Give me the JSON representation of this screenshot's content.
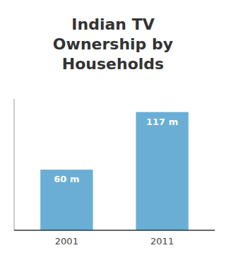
{
  "chart_data": {
    "type": "bar",
    "title": "Indian TV\nOwnership by\nHouseholds",
    "categories": [
      "2001",
      "2011"
    ],
    "values": [
      60,
      117
    ],
    "value_labels": [
      "60 m",
      "117 m"
    ],
    "color": "#6aaed6",
    "ylim": [
      0,
      130
    ],
    "yticks": [],
    "grid": false,
    "data_labels": true,
    "tick_labels": "x"
  }
}
